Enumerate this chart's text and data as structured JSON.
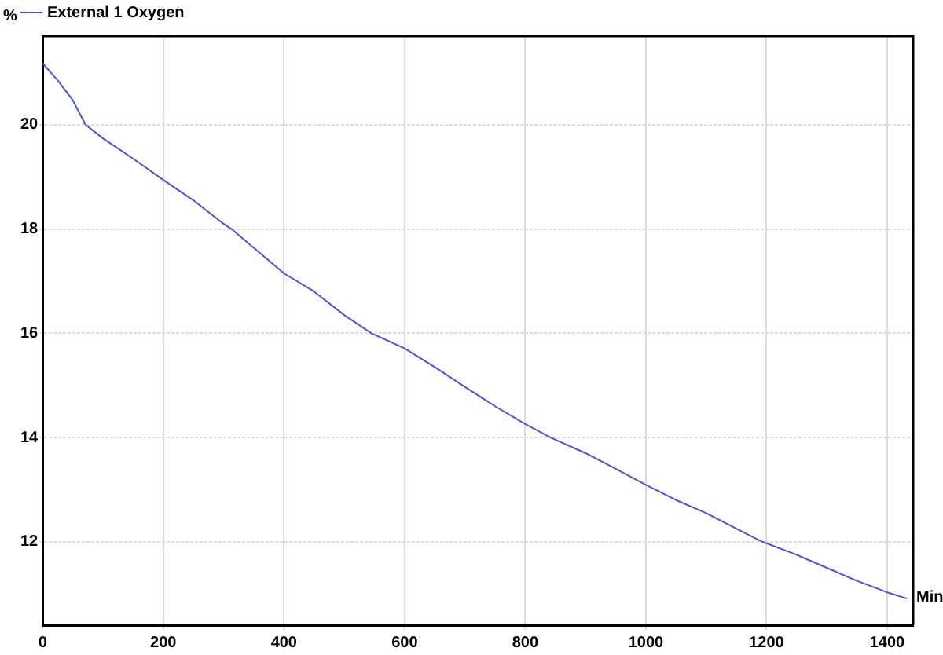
{
  "chart_data": {
    "type": "line",
    "ylabel": "%",
    "xlabel": "Min",
    "xlim": [
      0,
      1443
    ],
    "xticks": [
      0,
      200,
      400,
      600,
      800,
      1000,
      1200,
      1400
    ],
    "ylim": [
      10.4,
      21.7
    ],
    "yticks": [
      12,
      14,
      16,
      18,
      20
    ],
    "grid": true,
    "legend": "top left",
    "marker": "none",
    "line_style": "solid",
    "series": [
      {
        "name": "External 1 Oxygen",
        "color": "#5050d8",
        "x": [
          0,
          25,
          50,
          71,
          100,
          150,
          200,
          250,
          300,
          313,
          400,
          450,
          500,
          545,
          600,
          650,
          700,
          750,
          800,
          842,
          900,
          950,
          1000,
          1050,
          1100,
          1150,
          1193,
          1250,
          1300,
          1350,
          1400,
          1433
        ],
        "values": [
          21.18,
          20.85,
          20.47,
          20.0,
          19.74,
          19.35,
          18.94,
          18.55,
          18.1,
          18.0,
          17.15,
          16.8,
          16.35,
          16.0,
          15.71,
          15.35,
          14.97,
          14.6,
          14.26,
          14.0,
          13.7,
          13.4,
          13.09,
          12.8,
          12.55,
          12.25,
          12.0,
          11.75,
          11.5,
          11.25,
          11.03,
          10.91
        ]
      }
    ]
  }
}
